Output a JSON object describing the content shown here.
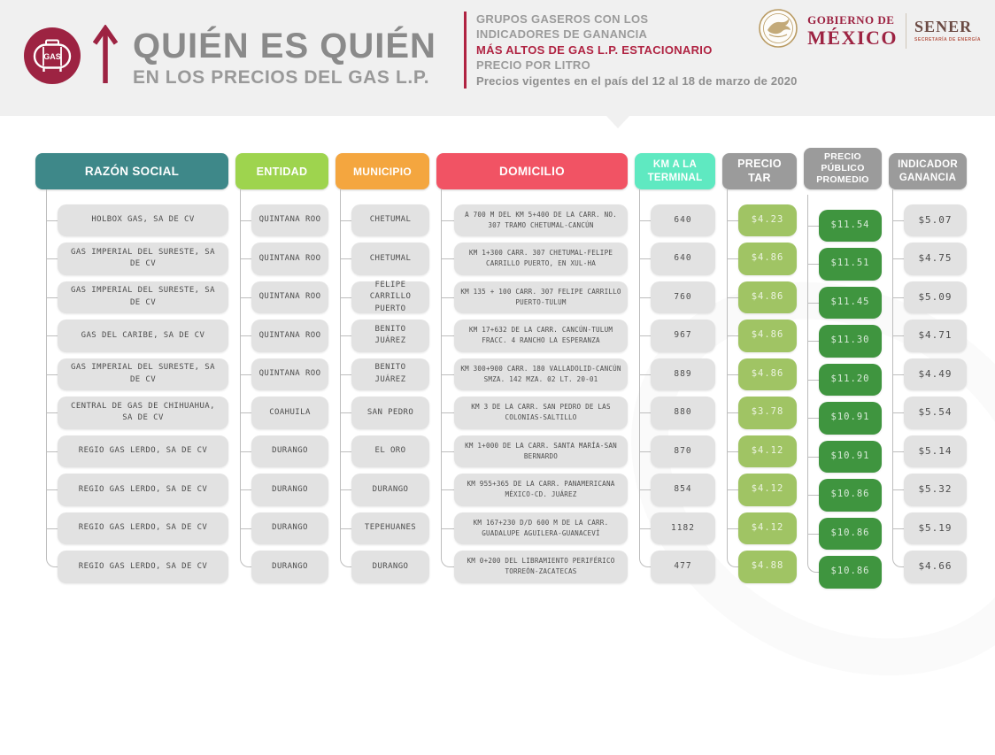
{
  "header": {
    "title_line1": "QUIÉN ES QUIÉN",
    "title_line2": "EN LOS PRECIOS DEL GAS L.P.",
    "gas_icon_label": "GAS",
    "subtitle_line1": "GRUPOS GASEROS CON LOS",
    "subtitle_line2": "INDICADORES DE GANANCIA",
    "subtitle_line3": "MÁS ALTOS DE GAS L.P. ESTACIONARIO",
    "subtitle_line4": "PRECIO POR LITRO",
    "subtitle_line5": "Precios vigentes en el país del 12 al 18 de marzo de 2020",
    "gov_line1": "GOBIERNO DE",
    "gov_line2": "MÉXICO",
    "agency": "SENER",
    "agency_sub": "SECRETARÍA DE ENERGÍA"
  },
  "colors": {
    "brand_maroon": "#9d2342",
    "accent_red_line": "#b02342",
    "band_gray": "#f0f0f0",
    "cell_gray": "#e2e2e2",
    "cell_light_green": "#a0c464",
    "cell_dark_green": "#3f953f",
    "emblem_tan": "#b99b63"
  },
  "table": {
    "columns": [
      {
        "id": "razon",
        "label": "RAZÓN SOCIAL",
        "color": "#3e8889"
      },
      {
        "id": "entidad",
        "label": "ENTIDAD",
        "color": "#9ed44e"
      },
      {
        "id": "municipio",
        "label": "MUNICIPIO",
        "color": "#f4a63f"
      },
      {
        "id": "domicilio",
        "label": "DOMICILIO",
        "color": "#f15364"
      },
      {
        "id": "km",
        "label": "KM A LA TERMINAL",
        "color": "#5fe9c1"
      },
      {
        "id": "tar",
        "label": "PRECIO TAR",
        "color": "#9b9b9b"
      },
      {
        "id": "pp",
        "label": "PRECIO PÚBLICO PROMEDIO",
        "color": "#9b9b9b"
      },
      {
        "id": "ind",
        "label": "INDICADOR GANANCIA",
        "color": "#9b9b9b"
      }
    ],
    "rows": [
      {
        "razon": "HOLBOX GAS, SA DE CV",
        "entidad": "QUINTANA ROO",
        "municipio": "CHETUMAL",
        "domicilio": "A 700 M DEL KM 5+400 DE LA CARR. NO. 307 TRAMO CHETUMAL-CANCÚN",
        "km": "640",
        "tar": "$4.23",
        "pp": "$11.54",
        "ind": "$5.07"
      },
      {
        "razon": "GAS IMPERIAL DEL SURESTE, SA DE CV",
        "entidad": "QUINTANA ROO",
        "municipio": "CHETUMAL",
        "domicilio": "KM 1+300 CARR. 307 CHETUMAL-FELIPE CARRILLO PUERTO, EN XUL-HA",
        "km": "640",
        "tar": "$4.86",
        "pp": "$11.51",
        "ind": "$4.75"
      },
      {
        "razon": "GAS IMPERIAL DEL SURESTE, SA DE CV",
        "entidad": "QUINTANA ROO",
        "municipio": "FELIPE CARRILLO PUERTO",
        "domicilio": "KM 135 + 100 CARR. 307 FELIPE CARRILLO PUERTO-TULUM",
        "km": "760",
        "tar": "$4.86",
        "pp": "$11.45",
        "ind": "$5.09"
      },
      {
        "razon": "GAS DEL CARIBE, SA DE CV",
        "entidad": "QUINTANA ROO",
        "municipio": "BENITO JUÁREZ",
        "domicilio": "KM 17+632 DE LA CARR. CANCÚN-TULUM FRACC. 4 RANCHO LA ESPERANZA",
        "km": "967",
        "tar": "$4.86",
        "pp": "$11.30",
        "ind": "$4.71"
      },
      {
        "razon": "GAS IMPERIAL DEL SURESTE, SA DE CV",
        "entidad": "QUINTANA ROO",
        "municipio": "BENITO JUÁREZ",
        "domicilio": "KM 300+900 CARR. 180 VALLADOLID-CANCÚN SMZA. 142 MZA. 02 LT. 20-01",
        "km": "889",
        "tar": "$4.86",
        "pp": "$11.20",
        "ind": "$4.49"
      },
      {
        "razon": "CENTRAL DE GAS DE CHIHUAHUA, SA DE CV",
        "entidad": "COAHUILA",
        "municipio": "SAN PEDRO",
        "domicilio": "KM 3 DE LA CARR. SAN PEDRO DE LAS COLONIAS-SALTILLO",
        "km": "880",
        "tar": "$3.78",
        "pp": "$10.91",
        "ind": "$5.54"
      },
      {
        "razon": "REGIO GAS LERDO, SA DE CV",
        "entidad": "DURANGO",
        "municipio": "EL ORO",
        "domicilio": "KM 1+000 DE LA CARR. SANTA MARÍA-SAN BERNARDO",
        "km": "870",
        "tar": "$4.12",
        "pp": "$10.91",
        "ind": "$5.14"
      },
      {
        "razon": "REGIO GAS LERDO, SA DE CV",
        "entidad": "DURANGO",
        "municipio": "DURANGO",
        "domicilio": "KM 955+365 DE LA CARR. PANAMERICANA MÉXICO-CD. JUÁREZ",
        "km": "854",
        "tar": "$4.12",
        "pp": "$10.86",
        "ind": "$5.32"
      },
      {
        "razon": "REGIO GAS LERDO, SA DE CV",
        "entidad": "DURANGO",
        "municipio": "TEPEHUANES",
        "domicilio": "KM 167+230 D/D 600 M DE LA CARR. GUADALUPE AGUILERA-GUANACEVÍ",
        "km": "1182",
        "tar": "$4.12",
        "pp": "$10.86",
        "ind": "$5.19"
      },
      {
        "razon": "REGIO GAS LERDO, SA DE CV",
        "entidad": "DURANGO",
        "municipio": "DURANGO",
        "domicilio": "KM 0+200 DEL LIBRAMIENTO PERIFÉRICO TORREÓN-ZACATECAS",
        "km": "477",
        "tar": "$4.88",
        "pp": "$10.86",
        "ind": "$4.66"
      }
    ]
  }
}
